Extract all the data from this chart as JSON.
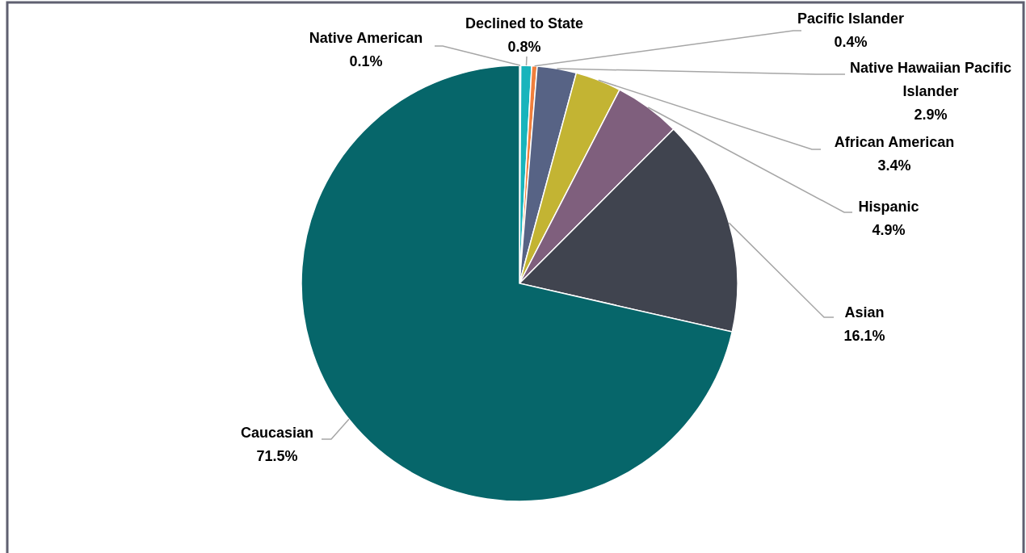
{
  "chart_data": {
    "type": "pie",
    "categories": [
      "Native American",
      "Declined to State",
      "Pacific Islander",
      "Native Hawaiian Pacific Islander",
      "African American",
      "Hispanic",
      "Asian",
      "Caucasian"
    ],
    "values": [
      0.1,
      0.8,
      0.4,
      2.9,
      3.4,
      4.9,
      16.1,
      71.5
    ],
    "value_labels": [
      "0.1%",
      "0.8%",
      "0.4%",
      "2.9%",
      "3.4%",
      "4.9%",
      "16.1%",
      "71.5%"
    ],
    "colors": [
      "#8ccfd3",
      "#18b4bc",
      "#f07f3c",
      "#576385",
      "#c3b433",
      "#7f5f7d",
      "#40444f",
      "#06666a"
    ],
    "legend": false
  }
}
